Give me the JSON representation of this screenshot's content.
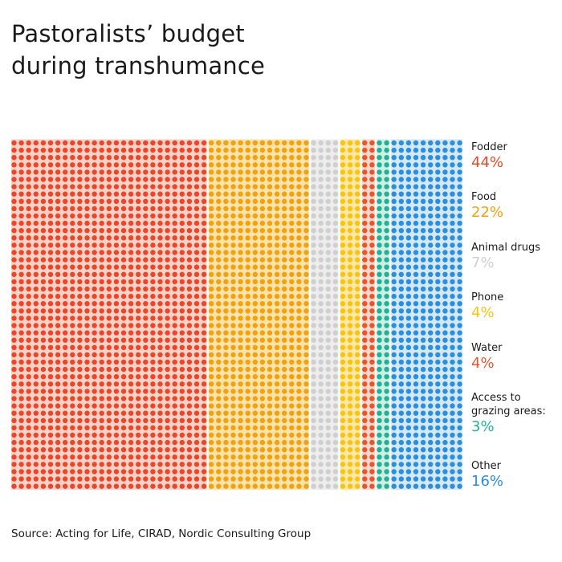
{
  "title_lines": [
    "Pastoralists’ budget",
    "during transhumance"
  ],
  "source": "Source: Acting for Life, CIRAD, Nordic Consulting Group",
  "chart_data": {
    "type": "waffle",
    "unit": "%",
    "categories": [
      "Fodder",
      "Food",
      "Animal drugs",
      "Phone",
      "Water",
      "Access to grazing areas:",
      "Other"
    ],
    "legend_labels": [
      [
        "Fodder"
      ],
      [
        "Food"
      ],
      [
        "Animal drugs"
      ],
      [
        "Phone"
      ],
      [
        "Water"
      ],
      [
        "Access to",
        "grazing areas:"
      ],
      [
        "Other"
      ]
    ],
    "value_labels": [
      "44%",
      "22%",
      "7%",
      "4%",
      "4%",
      "3%",
      "16%"
    ],
    "values": [
      44,
      22,
      7,
      4,
      4,
      3,
      16
    ],
    "colors": {
      "Fodder": "#e8472a",
      "Food": "#f2a10f",
      "Animal drugs": "#cfcfcf",
      "Phone": "#f8c313",
      "Water": "#e8552a",
      "Access to grazing areas:": "#1fb393",
      "Other": "#2b8fdc"
    },
    "background_tints": {
      "Fodder": "#f9c3b5",
      "Food": "#fbd98f",
      "Animal drugs": "#e7e7e7",
      "Phone": "#fde08a",
      "Water": "#f9c9b8",
      "Access to grazing areas:": "#bfe8dc",
      "Other": "#c6e0f6"
    },
    "legend_position": "right"
  }
}
